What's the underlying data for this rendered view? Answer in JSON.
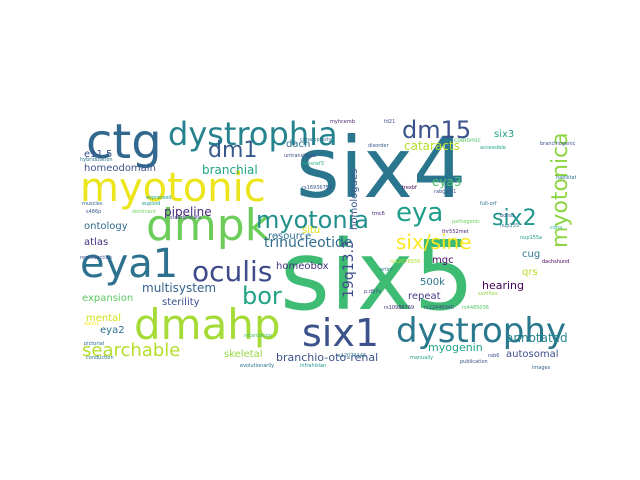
{
  "words": [
    {
      "text": "six4",
      "color": "#2a768e"
    },
    {
      "text": "six5",
      "color": "#3fbc73"
    },
    {
      "text": "myotonic",
      "color": "#ece51b"
    },
    {
      "text": "dmpk",
      "color": "#6ccd5a"
    },
    {
      "text": "dmahp",
      "color": "#a5db36"
    },
    {
      "text": "eya1",
      "color": "#2c718e"
    },
    {
      "text": "ctg",
      "color": "#31688e"
    },
    {
      "text": "dystrophia",
      "color": "#25838e"
    },
    {
      "text": "dystrophy",
      "color": "#2a788e"
    },
    {
      "text": "six1",
      "color": "#3b528b"
    },
    {
      "text": "oculis",
      "color": "#3e4a89"
    },
    {
      "text": "myotonia",
      "color": "#21908d"
    },
    {
      "text": "eya",
      "color": "#1f9e89"
    },
    {
      "text": "dm15",
      "color": "#3b518b"
    },
    {
      "text": "dm1",
      "color": "#38598c"
    },
    {
      "text": "bor",
      "color": "#20a386"
    },
    {
      "text": "six2",
      "color": "#1f958b"
    },
    {
      "text": "six/sine",
      "color": "#fde725"
    },
    {
      "text": "myotonica",
      "color": "#8ed645"
    },
    {
      "text": "searchable",
      "color": "#b5de2b"
    },
    {
      "text": "19q13.3",
      "color": "#3e4c8a"
    },
    {
      "text": "trinucleotide",
      "color": "#2f6c8e"
    },
    {
      "text": "multisystem",
      "color": "#34618d"
    },
    {
      "text": "pipeline",
      "color": "#482979"
    },
    {
      "text": "homeodomain",
      "color": "#3a548c"
    },
    {
      "text": "branchial",
      "color": "#20a486"
    },
    {
      "text": "cataracts",
      "color": "#b8de29"
    },
    {
      "text": "ontology",
      "color": "#2f6b8e"
    },
    {
      "text": "atlas",
      "color": "#472f7d"
    },
    {
      "text": "expansion",
      "color": "#5ec962"
    },
    {
      "text": "sterility",
      "color": "#3a538b"
    },
    {
      "text": "homeobox",
      "color": "#46337f"
    },
    {
      "text": "resource",
      "color": "#2d708e"
    },
    {
      "text": "annotated",
      "color": "#25858e"
    },
    {
      "text": "e11.5",
      "color": "#3b528b"
    },
    {
      "text": "eya3",
      "color": "#4ac16d"
    },
    {
      "text": "eya2",
      "color": "#2d718e"
    },
    {
      "text": "mental",
      "color": "#d2e21b"
    },
    {
      "text": "skeletal",
      "color": "#95d840"
    },
    {
      "text": "branchio-oto-renal",
      "color": "#3c508b"
    },
    {
      "text": "myogenin",
      "color": "#1fa287"
    },
    {
      "text": "autosomal",
      "color": "#3d4e8a"
    },
    {
      "text": "hearing",
      "color": "#440154"
    },
    {
      "text": "repeat",
      "color": "#433e85"
    },
    {
      "text": "500k",
      "color": "#2c738e"
    },
    {
      "text": "qrs",
      "color": "#b5de2b"
    },
    {
      "text": "cug",
      "color": "#29798e"
    },
    {
      "text": "mgc",
      "color": "#460b5e"
    },
    {
      "text": "homologues",
      "color": "#38588c"
    },
    {
      "text": "situ",
      "color": "#dde318"
    },
    {
      "text": "dach",
      "color": "#2d708e"
    },
    {
      "text": "six3",
      "color": "#1fa088"
    },
    {
      "text": "coelomic",
      "color": "#52c569"
    },
    {
      "text": "canaloplasty",
      "color": "#2c728e"
    },
    {
      "text": "myhcemb",
      "color": "#481d6f"
    },
    {
      "text": "bresnef3",
      "color": "#26ad81"
    },
    {
      "text": "untranslated",
      "color": "#3d4d8a"
    },
    {
      "text": "hybridization",
      "color": "#2c738e"
    },
    {
      "text": "s486p",
      "color": "#38598c"
    },
    {
      "text": "dominant",
      "color": "#73d056"
    },
    {
      "text": "muscles",
      "color": "#34618d"
    },
    {
      "text": "euploid",
      "color": "#1f9a8a"
    },
    {
      "text": "expressed",
      "color": "#1fa187"
    },
    {
      "text": "rs16936752",
      "color": "#3a548c"
    },
    {
      "text": "trexbf",
      "color": "#440154"
    },
    {
      "text": "rabgapl1",
      "color": "#39568c"
    },
    {
      "text": "full-orf",
      "color": "#2e6f8e"
    },
    {
      "text": "borsd",
      "color": "#3b528b"
    },
    {
      "text": "nup155",
      "color": "#2a768e"
    },
    {
      "text": "tmc6",
      "color": "#482173"
    },
    {
      "text": "rs12078839",
      "color": "#b0dd2f"
    },
    {
      "text": "erlinf",
      "color": "#2a778e"
    },
    {
      "text": "rs10986769",
      "color": "#472d7b"
    },
    {
      "text": "rs12446940",
      "color": "#3f4889"
    },
    {
      "text": "rs4485036",
      "color": "#54c568"
    },
    {
      "text": "rs12079146",
      "color": "#2b758e"
    },
    {
      "text": "infrahisian",
      "color": "#1f988b"
    },
    {
      "text": "evolutionarily",
      "color": "#2e6e8e"
    },
    {
      "text": "retardation",
      "color": "#4ac16d"
    },
    {
      "text": "reproduction",
      "color": "#3b518b"
    },
    {
      "text": "pictorial",
      "color": "#31688e"
    },
    {
      "text": "conduction",
      "color": "#2c718e"
    },
    {
      "text": "dach1",
      "color": "#fde725"
    },
    {
      "text": "manually",
      "color": "#1fa187"
    },
    {
      "text": "publication",
      "color": "#3a548c"
    },
    {
      "text": "rab6",
      "color": "#3b528b"
    },
    {
      "text": "images",
      "color": "#34618d"
    },
    {
      "text": "somites",
      "color": "#8ed645"
    },
    {
      "text": "habilitation",
      "color": "#2c728e"
    },
    {
      "text": "branchiogenic",
      "color": "#3b528b"
    },
    {
      "text": "accessible",
      "color": "#1fa287"
    },
    {
      "text": "disorder",
      "color": "#38588c"
    },
    {
      "text": "fd21",
      "color": "#3a548c"
    },
    {
      "text": "steady-state",
      "color": "#433e85"
    },
    {
      "text": "pathogenic",
      "color": "#6ece58"
    },
    {
      "text": "thr552met",
      "color": "#482475"
    },
    {
      "text": "nup155a",
      "color": "#1f9e89"
    },
    {
      "text": "dachshund",
      "color": "#440154"
    },
    {
      "text": "cdna",
      "color": "#25ac82"
    },
    {
      "text": "p.d97v",
      "color": "#3f4788"
    }
  ]
}
